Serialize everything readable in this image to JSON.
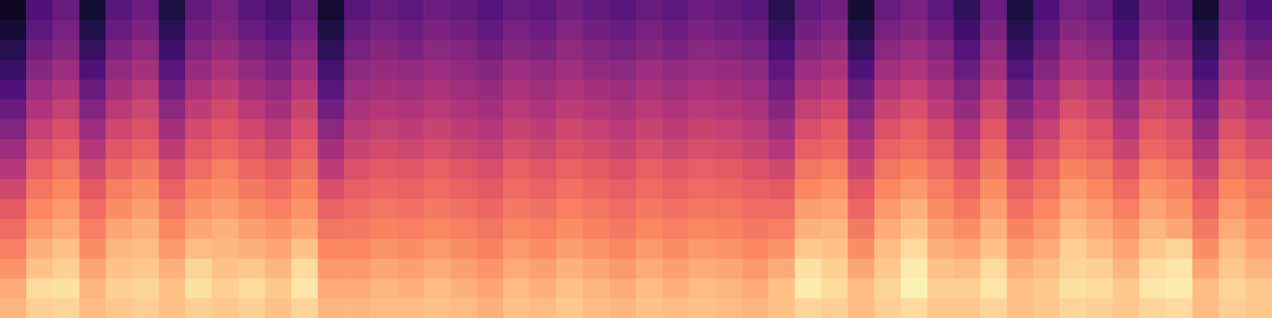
{
  "chart_data": {
    "type": "heatmap",
    "tick_labels": false,
    "grid": false,
    "zlim": [
      -80,
      0
    ],
    "z": [
      [
        -12,
        -8,
        -7,
        -11,
        -9,
        -8,
        -10,
        -8,
        -9,
        -8,
        -10,
        -7,
        -12,
        -12,
        -11,
        -11,
        -10,
        -11,
        -13,
        -10,
        -11,
        -9,
        -11,
        -12,
        -10,
        -11,
        -10,
        -11,
        -12,
        -10,
        -7,
        -8,
        -11,
        -8,
        -6,
        -9,
        -9,
        -7,
        -10,
        -9,
        -7,
        -8,
        -9,
        -7,
        -6,
        -11,
        -8,
        -9
      ],
      [
        -14,
        -6,
        -5,
        -12,
        -8,
        -7,
        -10,
        -5,
        -8,
        -6,
        -9,
        -4,
        -14,
        -14,
        -12,
        -13,
        -11,
        -13,
        -15,
        -11,
        -13,
        -10,
        -12,
        -14,
        -11,
        -13,
        -11,
        -12,
        -14,
        -10,
        -3,
        -6,
        -11,
        -7,
        -2,
        -8,
        -8,
        -4,
        -10,
        -9,
        -5,
        -6,
        -9,
        -4,
        -3,
        -11,
        -7,
        -9
      ],
      [
        -18,
        -10,
        -8,
        -15,
        -10,
        -9,
        -13,
        -7,
        -10,
        -9,
        -12,
        -6,
        -17,
        -17,
        -15,
        -16,
        -14,
        -16,
        -18,
        -14,
        -16,
        -13,
        -15,
        -17,
        -14,
        -16,
        -14,
        -15,
        -17,
        -14,
        -5,
        -8,
        -15,
        -9,
        -3,
        -10,
        -11,
        -6,
        -13,
        -11,
        -7,
        -8,
        -12,
        -6,
        -4,
        -15,
        -9,
        -12
      ],
      [
        -22,
        -13,
        -10,
        -19,
        -12,
        -11,
        -17,
        -11,
        -12,
        -13,
        -15,
        -10,
        -20,
        -20,
        -18,
        -19,
        -17,
        -19,
        -21,
        -17,
        -19,
        -16,
        -18,
        -20,
        -17,
        -19,
        -17,
        -18,
        -20,
        -18,
        -9,
        -10,
        -19,
        -11,
        -6,
        -13,
        -15,
        -10,
        -17,
        -14,
        -8,
        -11,
        -15,
        -9,
        -7,
        -19,
        -11,
        -15
      ],
      [
        -26,
        -17,
        -14,
        -22,
        -15,
        -13,
        -20,
        -15,
        -13,
        -16,
        -18,
        -15,
        -24,
        -23,
        -21,
        -22,
        -20,
        -22,
        -24,
        -20,
        -22,
        -19,
        -21,
        -23,
        -20,
        -22,
        -20,
        -21,
        -23,
        -22,
        -13,
        -12,
        -23,
        -14,
        -10,
        -16,
        -19,
        -13,
        -21,
        -17,
        -11,
        -14,
        -18,
        -12,
        -15,
        -23,
        -14,
        -18
      ],
      [
        -30,
        -20,
        -17,
        -26,
        -19,
        -16,
        -24,
        -18,
        -16,
        -19,
        -22,
        -18,
        -28,
        -26,
        -24,
        -25,
        -23,
        -25,
        -27,
        -23,
        -25,
        -22,
        -24,
        -26,
        -23,
        -25,
        -23,
        -24,
        -26,
        -26,
        -16,
        -15,
        -27,
        -17,
        -13,
        -19,
        -23,
        -16,
        -25,
        -20,
        -14,
        -17,
        -22,
        -15,
        -18,
        -27,
        -17,
        -21
      ],
      [
        -35,
        -24,
        -20,
        -30,
        -22,
        -19,
        -28,
        -21,
        -19,
        -23,
        -26,
        -21,
        -33,
        -29,
        -27,
        -28,
        -26,
        -28,
        -30,
        -26,
        -28,
        -25,
        -27,
        -29,
        -26,
        -28,
        -26,
        -27,
        -29,
        -30,
        -20,
        -18,
        -31,
        -20,
        -17,
        -22,
        -27,
        -19,
        -29,
        -24,
        -17,
        -20,
        -26,
        -18,
        -21,
        -31,
        -20,
        -24
      ],
      [
        -40,
        -28,
        -24,
        -35,
        -27,
        -23,
        -33,
        -26,
        -22,
        -27,
        -30,
        -25,
        -38,
        -32,
        -30,
        -31,
        -29,
        -31,
        -33,
        -29,
        -31,
        -28,
        -30,
        -32,
        -29,
        -31,
        -29,
        -30,
        -32,
        -35,
        -24,
        -22,
        -36,
        -24,
        -21,
        -26,
        -32,
        -23,
        -34,
        -28,
        -21,
        -24,
        -31,
        -22,
        -25,
        -36,
        -24,
        -28
      ],
      [
        -45,
        -33,
        -29,
        -40,
        -31,
        -28,
        -38,
        -30,
        -27,
        -31,
        -35,
        -29,
        -43,
        -36,
        -34,
        -35,
        -33,
        -35,
        -37,
        -33,
        -35,
        -32,
        -34,
        -36,
        -33,
        -35,
        -33,
        -34,
        -36,
        -40,
        -29,
        -27,
        -40,
        -28,
        -26,
        -30,
        -37,
        -27,
        -39,
        -33,
        -26,
        -29,
        -36,
        -27,
        -30,
        -41,
        -28,
        -33
      ],
      [
        -50,
        -37,
        -33,
        -45,
        -35,
        -32,
        -43,
        -34,
        -31,
        -35,
        -39,
        -33,
        -48,
        -39,
        -37,
        -38,
        -36,
        -38,
        -40,
        -36,
        -38,
        -35,
        -37,
        -39,
        -36,
        -38,
        -36,
        -37,
        -39,
        -45,
        -33,
        -30,
        -45,
        -32,
        -29,
        -34,
        -41,
        -31,
        -44,
        -37,
        -29,
        -32,
        -40,
        -30,
        -33,
        -46,
        -32,
        -37
      ],
      [
        -55,
        -41,
        -37,
        -50,
        -39,
        -35,
        -48,
        -38,
        -34,
        -39,
        -43,
        -36,
        -53,
        -42,
        -40,
        -41,
        -39,
        -41,
        -43,
        -39,
        -41,
        -38,
        -40,
        -42,
        -39,
        -41,
        -39,
        -40,
        -42,
        -49,
        -37,
        -34,
        -50,
        -36,
        -33,
        -38,
        -46,
        -35,
        -49,
        -41,
        -33,
        -36,
        -45,
        -34,
        -37,
        -51,
        -36,
        -41
      ],
      [
        -60,
        -45,
        -41,
        -55,
        -43,
        -39,
        -53,
        -42,
        -38,
        -43,
        -47,
        -40,
        -58,
        -45,
        -43,
        -44,
        -42,
        -44,
        -46,
        -42,
        -44,
        -41,
        -43,
        -45,
        -42,
        -44,
        -42,
        -43,
        -45,
        -53,
        -41,
        -38,
        -55,
        -40,
        -37,
        -42,
        -50,
        -39,
        -54,
        -45,
        -37,
        -40,
        -49,
        -38,
        -41,
        -56,
        -40,
        -45
      ],
      [
        -64,
        -49,
        -45,
        -60,
        -47,
        -43,
        -58,
        -46,
        -42,
        -47,
        -51,
        -44,
        -62,
        -48,
        -46,
        -47,
        -45,
        -47,
        -49,
        -45,
        -47,
        -44,
        -47,
        -48,
        -45,
        -47,
        -45,
        -46,
        -48,
        -57,
        -45,
        -42,
        -60,
        -44,
        -41,
        -46,
        -55,
        -43,
        -59,
        -49,
        -41,
        -44,
        -53,
        -42,
        -45,
        -61,
        -44,
        -49
      ],
      [
        -68,
        -53,
        -49,
        -65,
        -51,
        -47,
        -63,
        -50,
        -46,
        -51,
        -55,
        -48,
        -66,
        -52,
        -49,
        -51,
        -48,
        -50,
        -53,
        -49,
        -51,
        -47,
        -50,
        -52,
        -49,
        -51,
        -48,
        -50,
        -52,
        -61,
        -49,
        -46,
        -65,
        -48,
        -45,
        -50,
        -59,
        -47,
        -64,
        -53,
        -45,
        -48,
        -57,
        -46,
        -49,
        -65,
        -48,
        -53
      ],
      [
        -72,
        -57,
        -52,
        -69,
        -55,
        -51,
        -67,
        -53,
        -50,
        -55,
        -59,
        -52,
        -70,
        -55,
        -52,
        -54,
        -51,
        -53,
        -56,
        -52,
        -54,
        -50,
        -53,
        -55,
        -52,
        -54,
        -51,
        -53,
        -55,
        -65,
        -53,
        -50,
        -69,
        -52,
        -49,
        -54,
        -63,
        -51,
        -68,
        -57,
        -49,
        -52,
        -61,
        -50,
        -53,
        -69,
        -52,
        -57
      ],
      [
        -75,
        -60,
        -55,
        -72,
        -58,
        -54,
        -70,
        -56,
        -52,
        -58,
        -62,
        -55,
        -73,
        -58,
        -55,
        -57,
        -54,
        -56,
        -59,
        -55,
        -57,
        -53,
        -56,
        -58,
        -55,
        -57,
        -54,
        -56,
        -58,
        -68,
        -56,
        -53,
        -72,
        -55,
        -52,
        -57,
        -66,
        -54,
        -71,
        -60,
        -52,
        -55,
        -64,
        -53,
        -56,
        -72,
        -55,
        -60
      ]
    ]
  }
}
